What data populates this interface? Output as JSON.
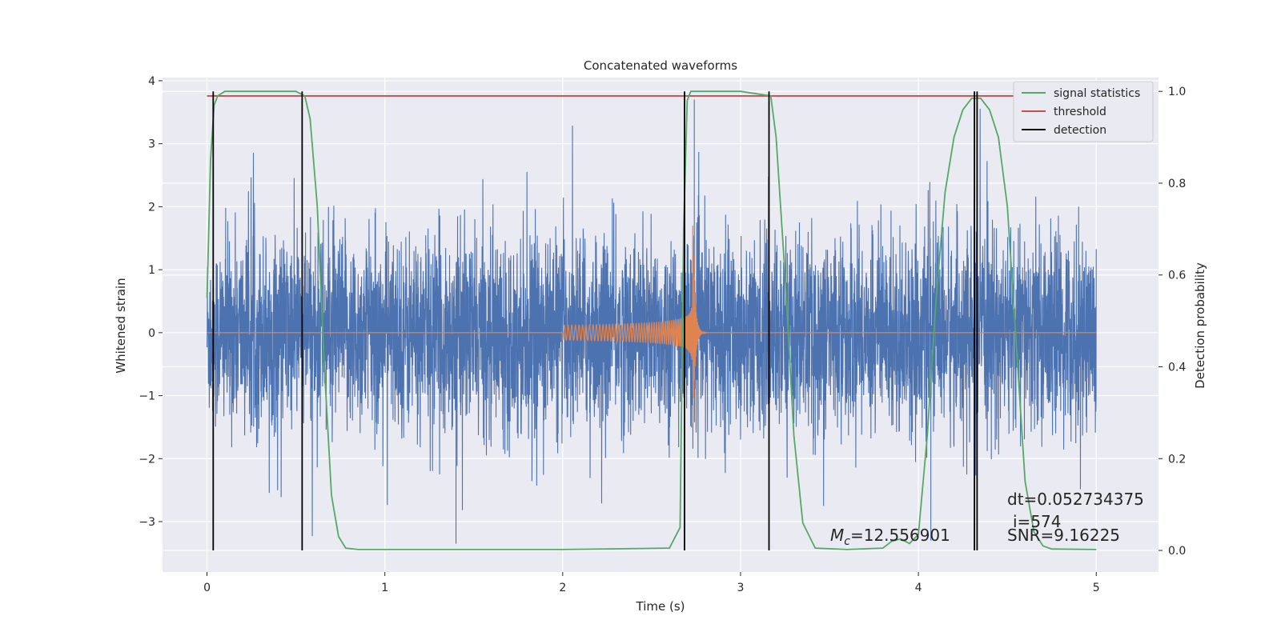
{
  "chart_data": {
    "type": "line",
    "title": "Concatenated waveforms",
    "xlabel": "Time (s)",
    "ylabel": "Whitened strain",
    "ylabel_right": "Detection probability",
    "xlim": [
      -0.25,
      5.35
    ],
    "ylim": [
      -3.8,
      4.05
    ],
    "ylim_right": [
      -0.047,
      1.03
    ],
    "x_ticks": [
      0,
      1,
      2,
      3,
      4,
      5
    ],
    "y_ticks": [
      -3,
      -2,
      -1,
      0,
      1,
      2,
      3,
      4
    ],
    "y_ticks_right": [
      0.0,
      0.2,
      0.4,
      0.6,
      0.8,
      1.0
    ],
    "x_tick_labels": [
      "0",
      "1",
      "2",
      "3",
      "4",
      "5"
    ],
    "y_tick_labels": [
      "−3",
      "−2",
      "−1",
      "0",
      "1",
      "2",
      "3",
      "4"
    ],
    "y_tick_labels_right": [
      "0.0",
      "0.2",
      "0.4",
      "0.6",
      "0.8",
      "1.0"
    ],
    "grid": true,
    "legend_position": "top-right",
    "legend": [
      "signal statistics",
      "threshold",
      "detection"
    ],
    "series": [
      {
        "name": "signal statistics",
        "axis": "right",
        "color": "#55a868",
        "x": [
          0.0,
          0.02,
          0.04,
          0.06,
          0.1,
          0.3,
          0.5,
          0.55,
          0.58,
          0.62,
          0.66,
          0.7,
          0.74,
          0.78,
          0.85,
          1.0,
          2.0,
          2.6,
          2.66,
          2.68,
          2.7,
          2.72,
          2.75,
          3.0,
          3.17,
          3.2,
          3.25,
          3.3,
          3.35,
          3.42,
          3.6,
          3.8,
          3.85,
          3.9,
          3.95,
          4.0,
          4.05,
          4.1,
          4.15,
          4.2,
          4.25,
          4.3,
          4.35,
          4.4,
          4.45,
          4.5,
          4.55,
          4.6,
          4.65,
          4.7,
          4.75,
          5.0
        ],
        "y": [
          0.55,
          0.85,
          0.97,
          0.99,
          1.0,
          1.0,
          1.0,
          0.99,
          0.94,
          0.75,
          0.4,
          0.12,
          0.03,
          0.005,
          0.002,
          0.002,
          0.002,
          0.005,
          0.05,
          0.7,
          0.98,
          1.0,
          1.0,
          1.0,
          0.99,
          0.9,
          0.6,
          0.25,
          0.06,
          0.005,
          0.002,
          0.005,
          0.02,
          0.025,
          0.015,
          0.035,
          0.25,
          0.55,
          0.78,
          0.9,
          0.96,
          0.985,
          0.985,
          0.96,
          0.9,
          0.75,
          0.45,
          0.15,
          0.04,
          0.01,
          0.003,
          0.002
        ]
      },
      {
        "name": "threshold",
        "axis": "right",
        "color": "#c44e52",
        "x": [
          0.0,
          5.0
        ],
        "y": [
          0.99,
          0.99
        ]
      }
    ],
    "strain": {
      "color": "#4c72b0",
      "x_range": [
        0.0,
        5.0
      ],
      "envelope_abs": 1.8,
      "peak_min": -3.45,
      "peak_max": 3.7,
      "note_peaks": [
        {
          "x": 1.4,
          "y": -3.35
        },
        {
          "x": 2.74,
          "y": 3.7
        },
        {
          "x": 4.07,
          "y": -3.3
        }
      ]
    },
    "template": {
      "color": "#dd8452",
      "x_start": 2.0,
      "x_merger": 2.73,
      "amp_start": 0.12,
      "amp_peak": 1.85,
      "amp_min_peak": -1.5
    },
    "detections": {
      "name": "detection",
      "color": "#000000",
      "x": [
        0.035,
        0.535,
        2.685,
        3.16,
        4.315,
        4.33
      ],
      "y_range": [
        0.0,
        1.0
      ]
    },
    "annotations": {
      "mc_prefix": "M",
      "mc_sub": "c",
      "mc_value": "=12.556901",
      "dt": "dt=0.052734375",
      "i": "i=574",
      "snr": "SNR=9.16225"
    },
    "style": {
      "background": "#eaeaf2",
      "grid_color": "#ffffff"
    }
  }
}
